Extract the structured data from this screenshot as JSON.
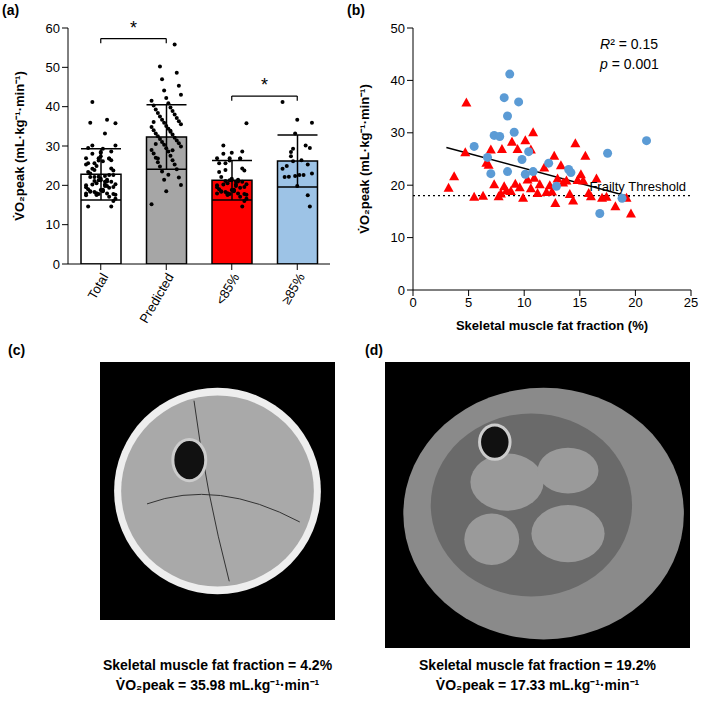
{
  "chart_data": [
    {
      "type": "bar",
      "panel_label": "(a)",
      "y_label": "V̇O₂peak (mL·kg⁻¹·min⁻¹)",
      "categories": [
        "Total",
        "Predicted",
        "<85%",
        "≥85%"
      ],
      "values": [
        22.8,
        32.3,
        21.3,
        26.2
      ],
      "errors": [
        6.5,
        8.2,
        5.0,
        6.6
      ],
      "colors": [
        "#ffffff",
        "#a6a6a6",
        "#ff0000",
        "#9dc3e6"
      ],
      "points": [
        [
          19.5,
          21.7,
          35.8,
          26.3,
          17.8,
          18.0,
          24.3,
          23.9,
          26.8,
          20.2,
          17.9,
          18.4,
          19.8,
          19.0,
          18.9,
          26.9,
          28.3,
          20.3,
          26.9,
          19.6,
          17.6,
          28.6,
          21.1,
          19.4,
          30.1,
          21.4,
          18.5,
          20.2,
          23.4,
          18.7,
          20.0,
          18.8,
          16.6,
          21.3,
          23.8,
          20.5,
          20.9,
          18.3,
          17.1,
          28.0,
          21.0,
          22.1,
          20.9,
          25.6,
          18.5,
          17.9,
          21.3,
          17.6,
          17.8,
          16.0,
          17.6,
          14.6,
          25.6,
          26.8,
          41.2,
          36.7,
          35.9,
          33.2,
          29.5,
          29.3,
          25.3,
          27.4,
          30.1,
          22.2,
          22.6,
          24.9,
          26.4,
          22.1,
          22.6,
          24.2,
          19.8,
          23.0,
          22.4,
          14.6,
          26.1,
          17.5,
          28.5
        ],
        [
          15.2,
          18.5,
          20.1,
          21.4,
          22.0,
          23.5,
          24.1,
          24.8,
          25.3,
          25.9,
          26.4,
          27.0,
          27.5,
          28.1,
          28.6,
          29.0,
          29.4,
          29.9,
          30.3,
          30.7,
          31.0,
          31.4,
          31.8,
          32.1,
          32.5,
          32.9,
          33.2,
          33.6,
          34.0,
          34.4,
          34.8,
          35.1,
          35.5,
          35.9,
          36.3,
          36.7,
          37.1,
          37.5,
          38.0,
          38.4,
          38.9,
          39.3,
          39.8,
          40.3,
          40.9,
          41.5,
          42.2,
          43.0,
          44.1,
          45.3,
          47.0,
          48.6,
          50.2,
          55.8,
          26.8,
          28.9,
          30.5,
          33.9,
          36.1,
          22.7
        ],
        [
          19.5,
          21.7,
          35.8,
          26.3,
          17.8,
          18.0,
          24.3,
          23.9,
          26.8,
          20.2,
          17.9,
          18.4,
          19.8,
          19.0,
          18.9,
          26.9,
          28.3,
          20.3,
          26.9,
          19.6,
          17.6,
          28.6,
          21.1,
          19.4,
          30.1,
          21.4,
          18.5,
          20.2,
          23.4,
          18.7,
          20.0,
          18.8,
          16.6,
          21.3,
          23.8,
          20.5,
          20.9,
          18.3,
          17.1,
          28.0,
          21.0,
          22.1,
          20.9,
          25.6,
          18.5,
          17.9,
          21.3,
          17.6,
          17.8,
          16.0,
          17.6,
          14.6,
          25.6,
          26.8
        ],
        [
          41.2,
          36.7,
          35.9,
          33.2,
          29.5,
          29.3,
          25.3,
          27.4,
          30.1,
          22.2,
          22.6,
          24.9,
          26.4,
          22.1,
          22.6,
          24.2,
          19.8,
          23.0,
          22.4,
          14.6,
          26.1,
          17.5,
          28.5
        ]
      ],
      "significance": [
        {
          "from": "Total",
          "to": "Predicted",
          "label": "*"
        },
        {
          "from": "<85%",
          "to": "≥85%",
          "label": "*"
        }
      ],
      "ylim": [
        0,
        60
      ],
      "yticks": [
        0,
        10,
        20,
        30,
        40,
        50,
        60
      ]
    },
    {
      "type": "scatter",
      "panel_label": "(b)",
      "x_label": "Skeletal muscle fat fraction (%)",
      "y_label": "V̇O₂peak (mL·kg⁻¹·min⁻¹)",
      "xlim": [
        0,
        25
      ],
      "xticks": [
        0,
        5,
        10,
        15,
        20,
        25
      ],
      "ylim": [
        0,
        50
      ],
      "yticks": [
        0,
        10,
        20,
        30,
        40,
        50
      ],
      "series": [
        {
          "color": "#ff0000",
          "marker": "triangle",
          "x": [
            3.2,
            3.7,
            4.8,
            4.7,
            5.5,
            6.3,
            6.6,
            6.8,
            7.0,
            7.3,
            7.7,
            7.9,
            8.2,
            8.4,
            8.8,
            8.0,
            8.9,
            9.2,
            9.4,
            9.6,
            9.9,
            10.1,
            10.3,
            10.6,
            10.8,
            10.9,
            11.2,
            11.4,
            11.8,
            12.0,
            12.3,
            12.5,
            12.8,
            13.0,
            13.3,
            13.5,
            13.8,
            14.1,
            14.4,
            14.6,
            14.8,
            15.1,
            15.3,
            15.5,
            15.8,
            16.0,
            16.5,
            17.0,
            17.4,
            18.2,
            19.2,
            19.6,
            12.7,
            10.6
          ],
          "y": [
            19.5,
            21.7,
            35.8,
            26.3,
            17.8,
            18.0,
            24.3,
            23.9,
            26.8,
            20.2,
            17.9,
            18.4,
            19.8,
            19.0,
            18.9,
            26.9,
            28.3,
            20.3,
            26.9,
            19.6,
            17.6,
            28.6,
            21.1,
            19.4,
            30.1,
            21.4,
            18.5,
            20.2,
            23.4,
            18.7,
            20.0,
            18.8,
            16.6,
            21.3,
            23.8,
            20.5,
            20.9,
            18.3,
            17.1,
            28.0,
            21.0,
            22.1,
            20.9,
            25.6,
            18.5,
            17.9,
            21.3,
            17.6,
            17.8,
            16.0,
            17.6,
            14.6,
            25.6,
            26.8
          ]
        },
        {
          "color": "#5b9bd5",
          "marker": "circle",
          "x": [
            8.7,
            8.2,
            9.5,
            8.5,
            7.3,
            7.8,
            6.7,
            5.5,
            9.1,
            7.0,
            8.5,
            9.8,
            10.4,
            10.1,
            10.8,
            12.2,
            12.9,
            14.0,
            14.2,
            16.8,
            17.5,
            18.8,
            21.0
          ],
          "y": [
            41.2,
            36.7,
            35.9,
            33.2,
            29.5,
            29.3,
            25.3,
            27.4,
            30.1,
            22.2,
            22.6,
            24.9,
            26.4,
            22.1,
            22.6,
            24.2,
            19.8,
            23.0,
            22.4,
            14.6,
            26.1,
            17.5,
            28.5
          ]
        }
      ],
      "trend_line": {
        "x": [
          3,
          19.5
        ],
        "y": [
          27.2,
          17.8
        ]
      },
      "threshold": {
        "value": 18,
        "label": "Frailty Threshold",
        "line_style": "dotted"
      },
      "annotations": [
        "R² = 0.15",
        "p = 0.001"
      ]
    }
  ],
  "images": [
    {
      "panel_label": "(c)",
      "caption": [
        "Skeletal muscle fat fraction = 4.2%",
        "V̇O₂peak = 35.98 mL.kg⁻¹·min⁻¹"
      ]
    },
    {
      "panel_label": "(d)",
      "caption": [
        "Skeletal muscle fat fraction = 19.2%",
        "V̇O₂peak = 17.33 mL.kg⁻¹·min⁻¹"
      ]
    }
  ]
}
